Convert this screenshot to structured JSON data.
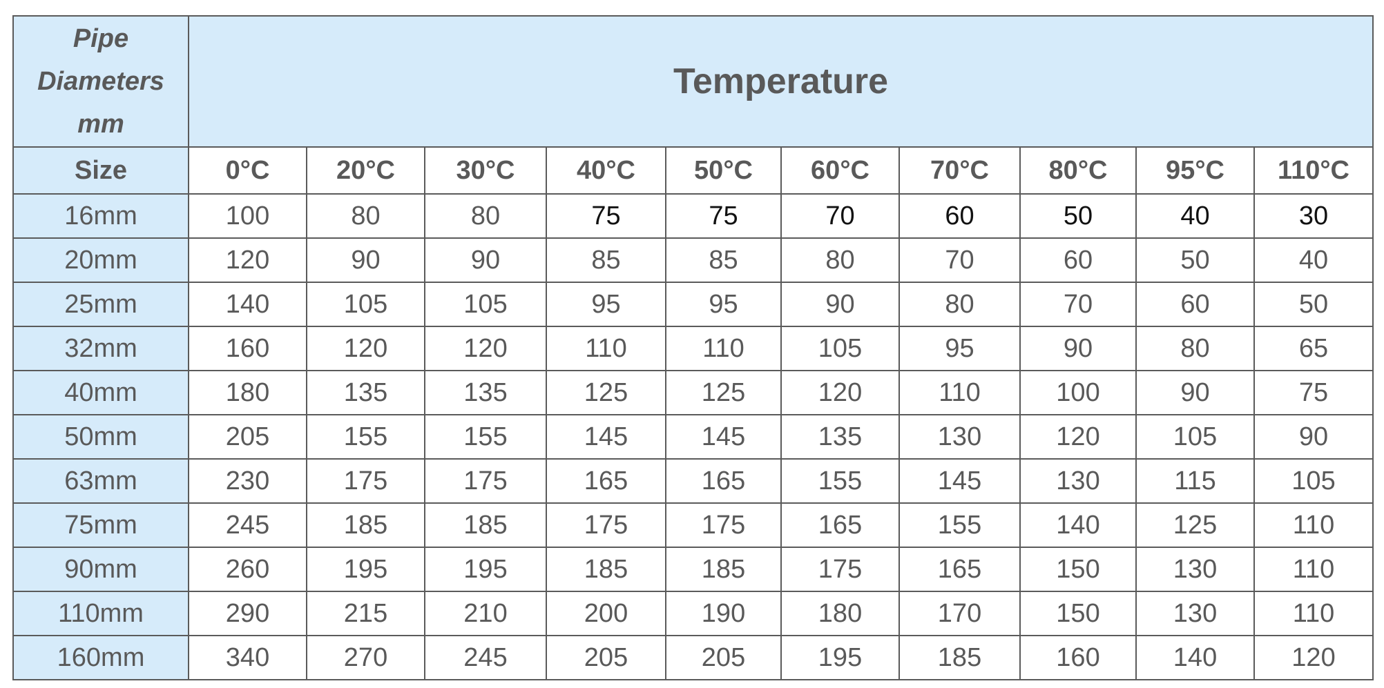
{
  "header": {
    "corner": [
      "Pipe",
      "Diameters",
      "mm"
    ],
    "title": "Temperature"
  },
  "table": {
    "size_header": "Size",
    "columns": [
      "0°C",
      "20°C",
      "30°C",
      "40°C",
      "50°C",
      "60°C",
      "70°C",
      "80°C",
      "95°C",
      "110°C"
    ],
    "rows": [
      {
        "size": "16mm",
        "values": [
          100,
          80,
          80,
          75,
          75,
          70,
          60,
          50,
          40,
          30
        ]
      },
      {
        "size": "20mm",
        "values": [
          120,
          90,
          90,
          85,
          85,
          80,
          70,
          60,
          50,
          40
        ]
      },
      {
        "size": "25mm",
        "values": [
          140,
          105,
          105,
          95,
          95,
          90,
          80,
          70,
          60,
          50
        ]
      },
      {
        "size": "32mm",
        "values": [
          160,
          120,
          120,
          110,
          110,
          105,
          95,
          90,
          80,
          65
        ]
      },
      {
        "size": "40mm",
        "values": [
          180,
          135,
          135,
          125,
          125,
          120,
          110,
          100,
          90,
          75
        ]
      },
      {
        "size": "50mm",
        "values": [
          205,
          155,
          155,
          145,
          145,
          135,
          130,
          120,
          105,
          90
        ]
      },
      {
        "size": "63mm",
        "values": [
          230,
          175,
          175,
          165,
          165,
          155,
          145,
          130,
          115,
          105
        ]
      },
      {
        "size": "75mm",
        "values": [
          245,
          185,
          185,
          175,
          175,
          165,
          155,
          140,
          125,
          110
        ]
      },
      {
        "size": "90mm",
        "values": [
          260,
          195,
          195,
          185,
          185,
          175,
          165,
          150,
          130,
          110
        ]
      },
      {
        "size": "110mm",
        "values": [
          290,
          215,
          210,
          200,
          190,
          180,
          170,
          150,
          130,
          110
        ]
      },
      {
        "size": "160mm",
        "values": [
          340,
          270,
          245,
          205,
          205,
          195,
          185,
          160,
          140,
          120
        ]
      }
    ]
  }
}
